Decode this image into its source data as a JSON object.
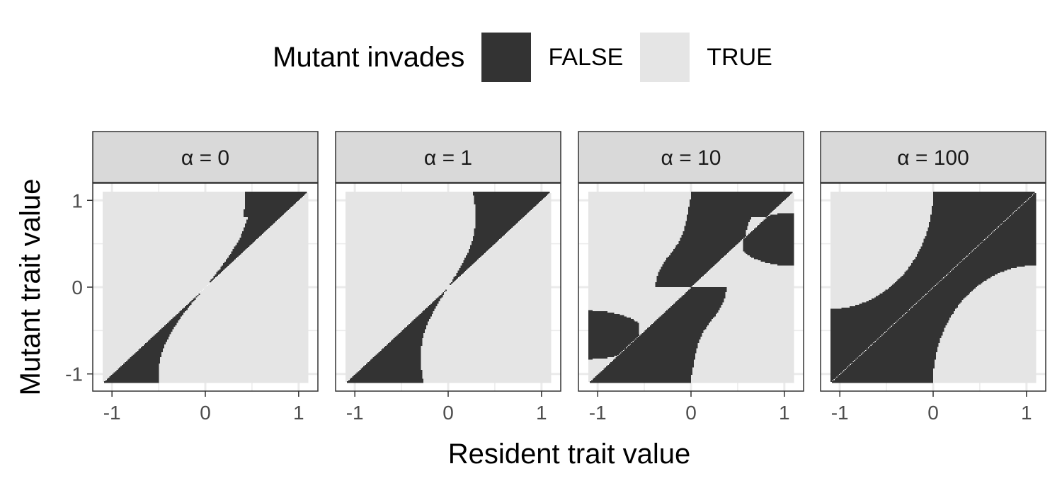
{
  "chart_data": {
    "type": "heatmap",
    "description_of_cells": "pairwise invasibility plot: each facet shows where a mutant invades a resident",
    "legend": {
      "title": "Mutant invades",
      "entries": [
        {
          "label": "FALSE",
          "color": "#333333"
        },
        {
          "label": "TRUE",
          "color": "#e5e5e5"
        }
      ],
      "position": "top"
    },
    "xlabel": "Resident trait value",
    "ylabel": "Mutant trait value",
    "xlim": [
      -1.1,
      1.1
    ],
    "ylim": [
      -1.1,
      1.1
    ],
    "x_ticks": [
      -1,
      0,
      1
    ],
    "y_ticks": [
      -1,
      0,
      1
    ],
    "x_tick_labels": [
      "-1",
      "0",
      "1"
    ],
    "y_tick_labels": [
      "-1",
      "0",
      "1"
    ],
    "grid": true,
    "facets": [
      {
        "label": "α = 0",
        "alpha": 0
      },
      {
        "label": "α = 1",
        "alpha": 1
      },
      {
        "label": "α = 10",
        "alpha": 10
      },
      {
        "label": "α = 100",
        "alpha": 100
      }
    ],
    "colors": {
      "false": "#333333",
      "true": "#e5e5e5",
      "strip_fill": "#d9d9d9",
      "grid": "#ebebeb",
      "axis_text": "#4d4d4d"
    }
  }
}
